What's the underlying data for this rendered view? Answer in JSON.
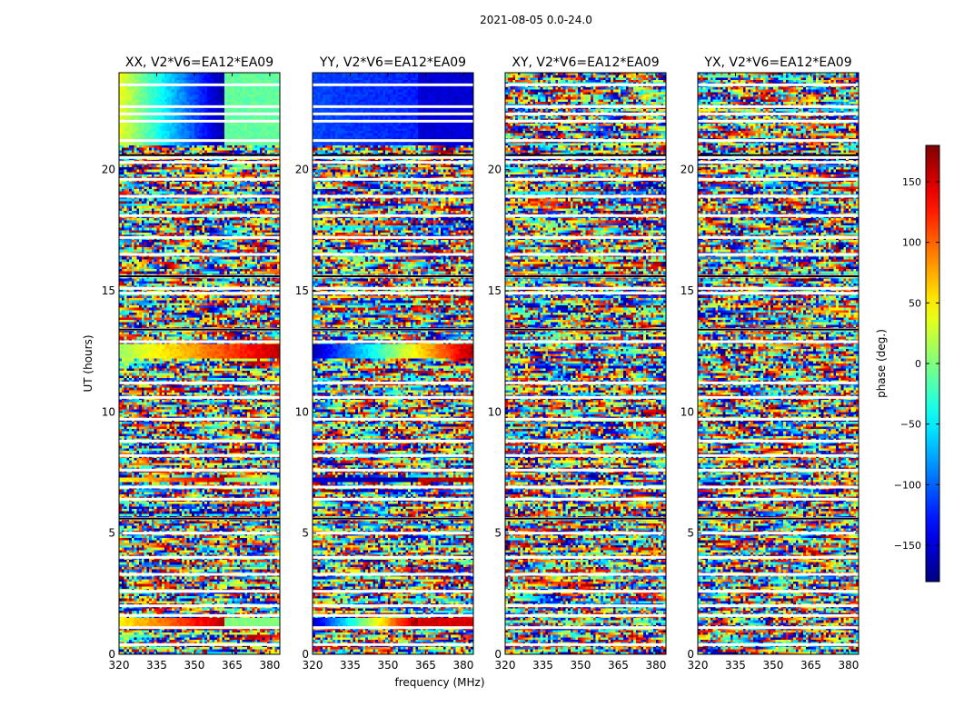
{
  "chart_data": {
    "type": "heatmap",
    "suptitle": "2021-08-05 0.0-24.0",
    "xlabel": "frequency (MHz)",
    "ylabel": "UT (hours)",
    "xlim": [
      320,
      384
    ],
    "ylim": [
      0,
      24
    ],
    "xticks": [
      320,
      335,
      350,
      365,
      380
    ],
    "yticks": [
      0,
      5,
      10,
      15,
      20
    ],
    "panels": [
      {
        "title": "XX, V2*V6=EA12*EA09",
        "pol": "XX",
        "coherent": [
          {
            "t0": 21.0,
            "t1": 24.0,
            "phase_start": 40,
            "phase_end": -170,
            "f_end": 362,
            "tail_phase": -10
          },
          {
            "t0": 12.2,
            "t1": 12.8,
            "phase_start": 10,
            "phase_end": 160,
            "f_end": 384,
            "tail_phase": 160
          },
          {
            "t0": 7.1,
            "t1": 7.3,
            "phase_start": 40,
            "phase_end": 160,
            "f_end": 362,
            "tail_phase": 0
          },
          {
            "t0": 1.1,
            "t1": 1.5,
            "phase_start": 45,
            "phase_end": 160,
            "f_end": 362,
            "tail_phase": 0
          }
        ]
      },
      {
        "title": "YY, V2*V6=EA12*EA09",
        "pol": "YY",
        "coherent": [
          {
            "t0": 21.0,
            "t1": 24.0,
            "phase_start": -110,
            "phase_end": -125,
            "f_end": 362,
            "tail_phase": -150
          },
          {
            "t0": 12.2,
            "t1": 12.8,
            "phase_start": -165,
            "phase_end": 165,
            "f_end": 384,
            "tail_phase": 165
          },
          {
            "t0": 7.1,
            "t1": 7.3,
            "phase_start": -150,
            "phase_end": -170,
            "f_end": 362,
            "tail_phase": 160
          },
          {
            "t0": 1.1,
            "t1": 1.5,
            "phase_start": -160,
            "phase_end": 170,
            "f_end": 362,
            "tail_phase": 150
          }
        ]
      },
      {
        "title": "XY, V2*V6=EA12*EA09",
        "pol": "XY",
        "coherent": []
      },
      {
        "title": "YX, V2*V6=EA12*EA09",
        "pol": "YX",
        "coherent": []
      }
    ],
    "flagged_hours": [
      0.4,
      1.1,
      1.6,
      2.0,
      2.6,
      3.3,
      4.0,
      5.0,
      5.6,
      6.4,
      6.9,
      7.6,
      8.2,
      8.8,
      9.7,
      10.6,
      11.2,
      12.9,
      13.4,
      14.9,
      15.1,
      15.6,
      16.5,
      17.2,
      18.1,
      18.9,
      19.6,
      20.3,
      20.5,
      21.2,
      22.0,
      22.3,
      22.6,
      23.5
    ],
    "colorbar": {
      "label": "phase (deg.)",
      "min": -180,
      "max": 180,
      "ticks": [
        -150,
        -100,
        -50,
        0,
        50,
        100,
        150
      ],
      "colormap": "jet"
    }
  }
}
